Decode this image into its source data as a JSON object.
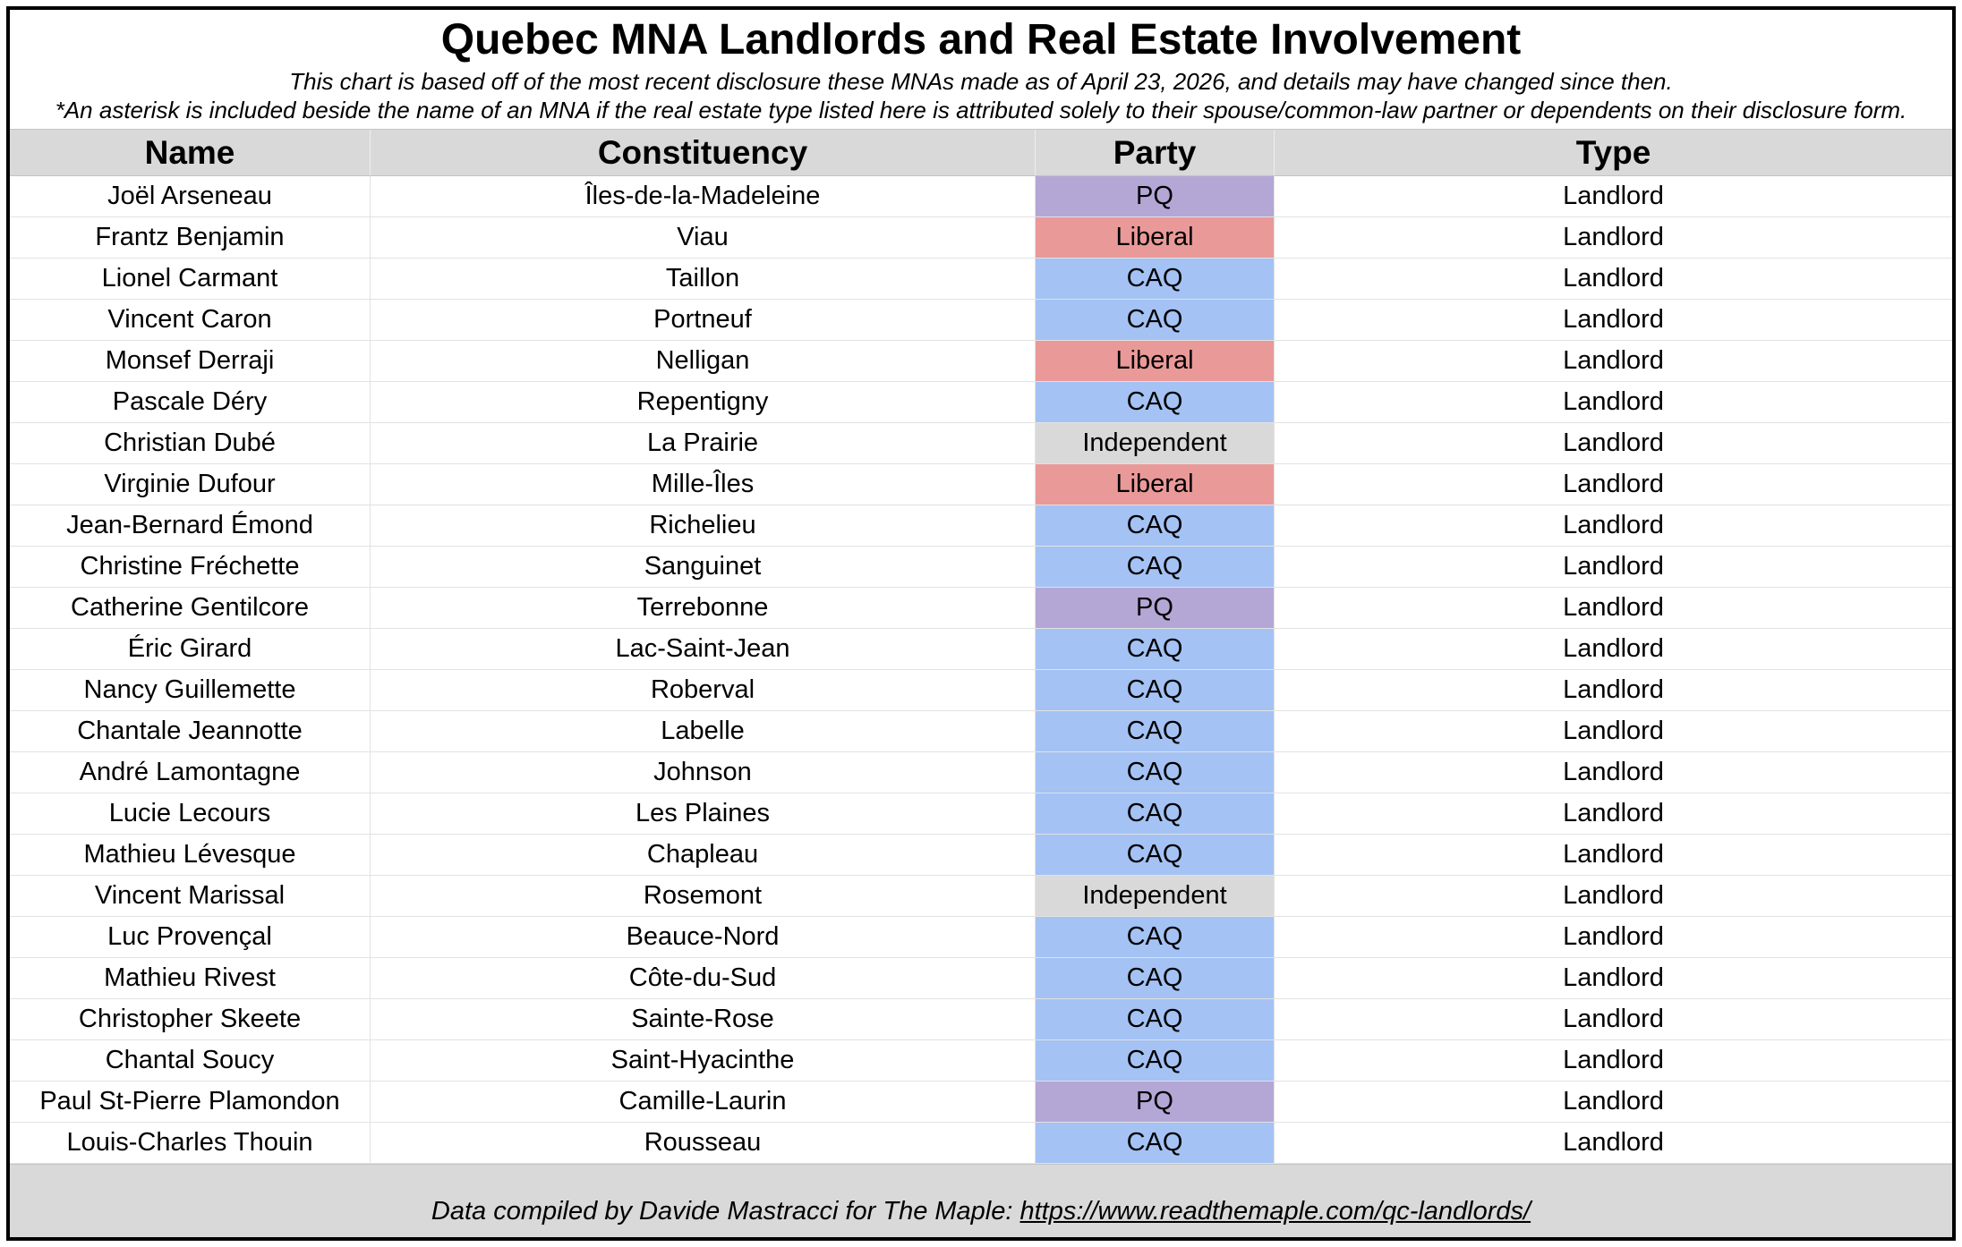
{
  "colors": {
    "header_bg": "#d9d9d9",
    "footer_bg": "#d9d9d9",
    "party": {
      "PQ": "#b4a7d6",
      "Liberal": "#ea9999",
      "CAQ": "#a4c2f4",
      "Independent": "#d9d9d9"
    }
  },
  "chart_data": {
    "type": "table",
    "title": "Quebec MNA Landlords and Real Estate Involvement",
    "subtitle": "This chart is based off of the most recent disclosure these MNAs made as of April 23, 2026, and details may have changed since then.",
    "note": "*An asterisk is included beside the name of an MNA if the real estate type listed here is attributed solely to their spouse/common-law partner or dependents on their disclosure form.",
    "columns": [
      "Name",
      "Constituency",
      "Party",
      "Type"
    ],
    "rows": [
      {
        "name": "Joël Arseneau",
        "constituency": "Îles-de-la-Madeleine",
        "party": "PQ",
        "type": "Landlord"
      },
      {
        "name": "Frantz Benjamin",
        "constituency": "Viau",
        "party": "Liberal",
        "type": "Landlord"
      },
      {
        "name": "Lionel Carmant",
        "constituency": "Taillon",
        "party": "CAQ",
        "type": "Landlord"
      },
      {
        "name": "Vincent Caron",
        "constituency": "Portneuf",
        "party": "CAQ",
        "type": "Landlord"
      },
      {
        "name": "Monsef Derraji",
        "constituency": "Nelligan",
        "party": "Liberal",
        "type": "Landlord"
      },
      {
        "name": "Pascale Déry",
        "constituency": "Repentigny",
        "party": "CAQ",
        "type": "Landlord"
      },
      {
        "name": "Christian Dubé",
        "constituency": "La Prairie",
        "party": "Independent",
        "type": "Landlord"
      },
      {
        "name": "Virginie Dufour",
        "constituency": "Mille-Îles",
        "party": "Liberal",
        "type": "Landlord"
      },
      {
        "name": "Jean-Bernard Émond",
        "constituency": "Richelieu",
        "party": "CAQ",
        "type": "Landlord"
      },
      {
        "name": "Christine Fréchette",
        "constituency": "Sanguinet",
        "party": "CAQ",
        "type": "Landlord"
      },
      {
        "name": "Catherine Gentilcore",
        "constituency": "Terrebonne",
        "party": "PQ",
        "type": "Landlord"
      },
      {
        "name": "Éric Girard",
        "constituency": "Lac-Saint-Jean",
        "party": "CAQ",
        "type": "Landlord"
      },
      {
        "name": "Nancy Guillemette",
        "constituency": "Roberval",
        "party": "CAQ",
        "type": "Landlord"
      },
      {
        "name": "Chantale Jeannotte",
        "constituency": "Labelle",
        "party": "CAQ",
        "type": "Landlord"
      },
      {
        "name": "André Lamontagne",
        "constituency": "Johnson",
        "party": "CAQ",
        "type": "Landlord"
      },
      {
        "name": "Lucie Lecours",
        "constituency": "Les Plaines",
        "party": "CAQ",
        "type": "Landlord"
      },
      {
        "name": "Mathieu Lévesque",
        "constituency": "Chapleau",
        "party": "CAQ",
        "type": "Landlord"
      },
      {
        "name": "Vincent Marissal",
        "constituency": "Rosemont",
        "party": "Independent",
        "type": "Landlord"
      },
      {
        "name": "Luc Provençal",
        "constituency": "Beauce-Nord",
        "party": "CAQ",
        "type": "Landlord"
      },
      {
        "name": "Mathieu Rivest",
        "constituency": "Côte-du-Sud",
        "party": "CAQ",
        "type": "Landlord"
      },
      {
        "name": "Christopher Skeete",
        "constituency": "Sainte-Rose",
        "party": "CAQ",
        "type": "Landlord"
      },
      {
        "name": "Chantal Soucy",
        "constituency": "Saint-Hyacinthe",
        "party": "CAQ",
        "type": "Landlord"
      },
      {
        "name": "Paul St-Pierre Plamondon",
        "constituency": "Camille-Laurin",
        "party": "PQ",
        "type": "Landlord"
      },
      {
        "name": "Louis-Charles Thouin",
        "constituency": "Rousseau",
        "party": "CAQ",
        "type": "Landlord"
      }
    ]
  },
  "footer": {
    "text": "Data compiled by Davide Mastracci for The Maple:",
    "link": "https://www.readthemaple.com/qc-landlords/"
  }
}
